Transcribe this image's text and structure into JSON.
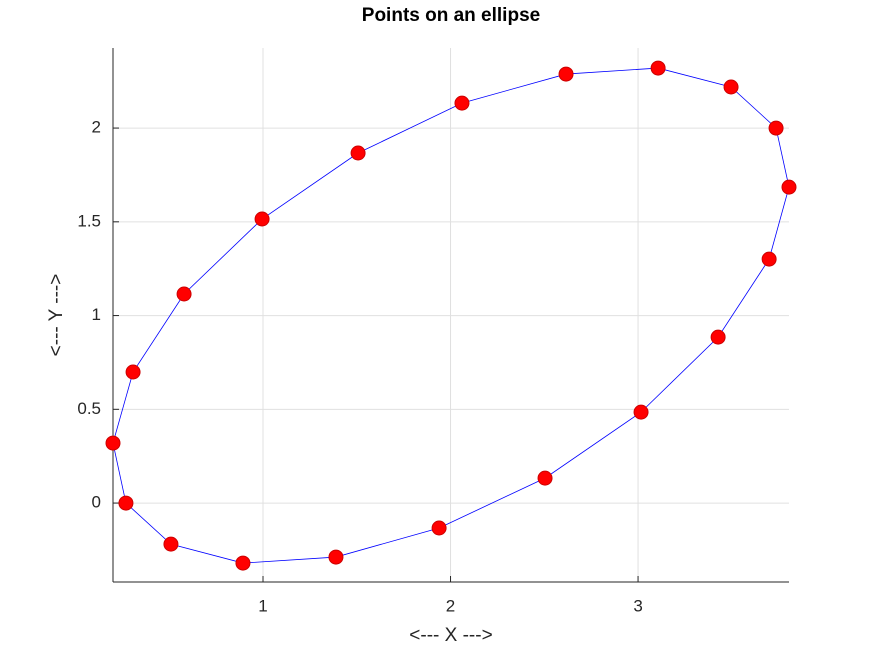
{
  "chart_data": {
    "type": "line",
    "title": "Points on an ellipse",
    "x_label": "<--- X --->",
    "y_label": "<--- Y --->",
    "x": [
      0.2,
      0.269,
      0.509,
      0.893,
      1.389,
      1.939,
      2.504,
      3.016,
      3.427,
      3.699,
      3.805,
      3.736,
      3.496,
      3.107,
      2.616,
      2.061,
      1.507,
      0.995,
      0.579,
      0.307
    ],
    "values": [
      0.32,
      0,
      -0.219,
      -0.32,
      -0.288,
      -0.133,
      0.133,
      0.485,
      0.885,
      1.301,
      1.685,
      2.0,
      2.219,
      2.32,
      2.288,
      2.133,
      1.867,
      1.515,
      1.115,
      0.699
    ],
    "closed": true,
    "line_color": "#0000ff",
    "marker_color": "#ff0000",
    "marker_edge_color": "#cc0000",
    "xlim": [
      0.2,
      3.805
    ],
    "ylim": [
      -0.421,
      2.427
    ],
    "xticks": [
      1,
      2,
      3
    ],
    "yticks": [
      0,
      0.5,
      1,
      1.5,
      2
    ],
    "grid": true
  }
}
